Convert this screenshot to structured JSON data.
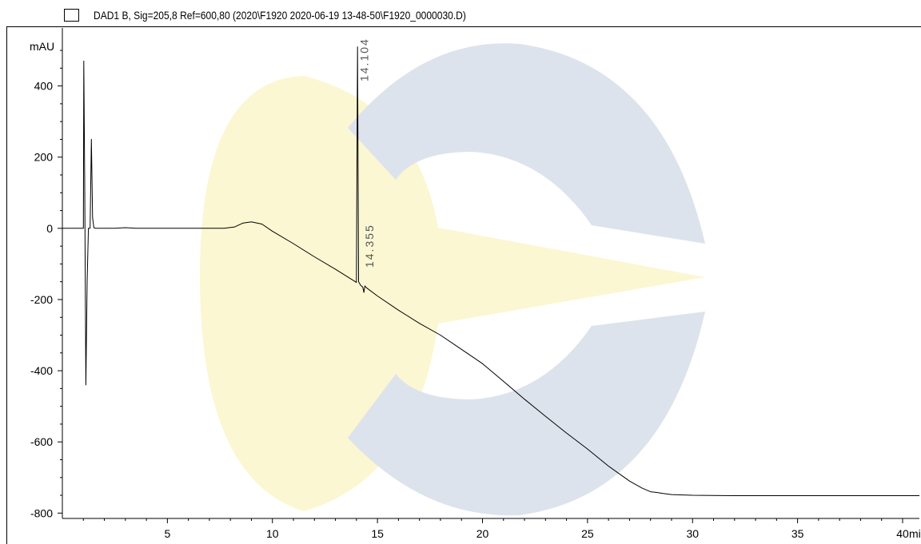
{
  "header": {
    "legend_text": "DAD1 B, Sig=205,8 Ref=600,80 (2020\\F1920 2020-06-19 13-48-50\\F1920_0000030.D)"
  },
  "chart_data": {
    "type": "line",
    "title": "DAD1 B, Sig=205,8 Ref=600,80 (2020\\F1920 2020-06-19 13-48-50\\F1920_0000030.D)",
    "ylabel": "mAU",
    "xlabel": "mi",
    "xlim": [
      0,
      40.8
    ],
    "ylim": [
      -815,
      545
    ],
    "x_ticks": [
      5,
      10,
      15,
      20,
      25,
      30,
      35,
      40
    ],
    "x_tick_labels": [
      "5",
      "10",
      "15",
      "20",
      "25",
      "30",
      "35",
      "40"
    ],
    "y_ticks": [
      400,
      200,
      0,
      -200,
      -400,
      -600,
      -800
    ],
    "y_tick_labels": [
      "400",
      "200",
      "0",
      "-200",
      "-400",
      "-600",
      "-800"
    ],
    "grid": false,
    "watermark": {
      "colors": [
        "#fbf7d2",
        "#dde3ec"
      ]
    },
    "series": [
      {
        "color": "#000000",
        "x": [
          0.0,
          0.9,
          1.0,
          1.02,
          1.06,
          1.12,
          1.18,
          1.24,
          1.32,
          1.38,
          1.44,
          1.5,
          1.58,
          1.7,
          2.0,
          2.5,
          3.0,
          3.5,
          4.0,
          5.0,
          6.0,
          7.0,
          7.7,
          8.2,
          8.6,
          9.0,
          9.5,
          10.0,
          11.0,
          12.0,
          13.0,
          13.95,
          14.0,
          14.05,
          14.1,
          14.15,
          14.2,
          14.3,
          14.355,
          14.4,
          14.5,
          15.0,
          16.0,
          17.0,
          18.0,
          19.0,
          20.0,
          21.0,
          22.0,
          23.0,
          24.0,
          25.0,
          26.0,
          27.0,
          27.6,
          28.0,
          28.3,
          28.6,
          29.0,
          30.0,
          32.0,
          35.0,
          38.0,
          40.8
        ],
        "y": [
          0,
          0,
          0,
          470,
          150,
          -440,
          -150,
          0,
          0,
          250,
          30,
          2,
          0,
          0,
          0,
          0,
          2,
          0,
          0,
          0,
          0,
          0,
          0,
          4,
          15,
          18,
          12,
          -8,
          -43,
          -80,
          -115,
          -150,
          -152,
          510,
          -150,
          -155,
          -160,
          -165,
          -180,
          -162,
          -168,
          -190,
          -230,
          -267,
          -300,
          -340,
          -380,
          -430,
          -480,
          -528,
          -575,
          -620,
          -668,
          -710,
          -730,
          -740,
          -742,
          -745,
          -748,
          -750,
          -751,
          -751,
          -751,
          -751
        ]
      }
    ],
    "annotations": [
      {
        "text": "14.104",
        "x": 14.104
      },
      {
        "text": "14.355",
        "x": 14.355
      }
    ]
  }
}
